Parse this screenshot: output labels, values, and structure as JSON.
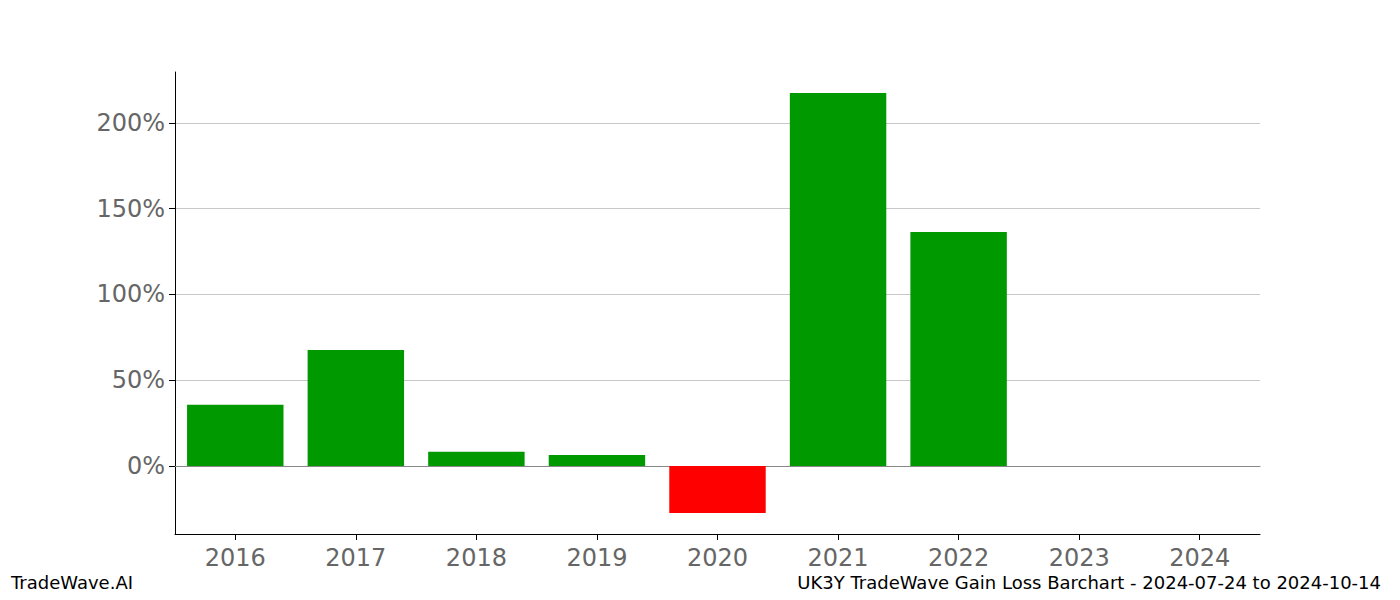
{
  "chart_data": {
    "type": "bar",
    "title": "UK3Y TradeWave Gain Loss Barchart - 2024-07-24 to 2024-10-14",
    "credit": "TradeWave.AI",
    "categories": [
      "2016",
      "2017",
      "2018",
      "2019",
      "2020",
      "2021",
      "2022",
      "2023",
      "2024"
    ],
    "values": [
      35.6,
      67.6,
      8.2,
      6.4,
      -27.4,
      217.5,
      136.4,
      null,
      null
    ],
    "colors": [
      "#009900",
      "#009900",
      "#009900",
      "#009900",
      "#ff0000",
      "#009900",
      "#009900",
      null,
      null
    ],
    "ylim": [
      -39.7,
      229.7
    ],
    "yticks": [
      {
        "value": 0,
        "label": "0%"
      },
      {
        "value": 50,
        "label": "50%"
      },
      {
        "value": 100,
        "label": "100%"
      },
      {
        "value": 150,
        "label": "150%"
      },
      {
        "value": 200,
        "label": "200%"
      }
    ],
    "grid": true
  }
}
